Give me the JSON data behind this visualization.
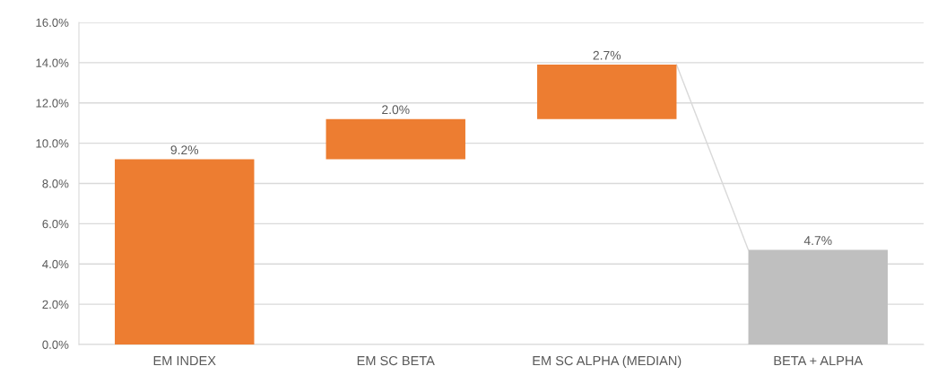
{
  "chart_data": {
    "type": "bar",
    "categories": [
      "EM INDEX",
      "EM SC BETA",
      "EM SC ALPHA (MEDIAN)",
      "BETA + ALPHA"
    ],
    "series": [
      {
        "values": [
          9.2,
          2.0,
          2.7,
          4.7
        ],
        "base": [
          0,
          9.2,
          11.2,
          0
        ],
        "colors": [
          "#ed7d31",
          "#ed7d31",
          "#ed7d31",
          "#bfbfbf"
        ],
        "value_labels": [
          "9.2%",
          "2.0%",
          "2.7%",
          "4.7%"
        ]
      }
    ],
    "ylim": [
      0,
      16
    ],
    "yticks": [
      {
        "value": 0,
        "label": "0.0%"
      },
      {
        "value": 2,
        "label": "2.0%"
      },
      {
        "value": 4,
        "label": "4.0%"
      },
      {
        "value": 6,
        "label": "6.0%"
      },
      {
        "value": 8,
        "label": "8.0%"
      },
      {
        "value": 10,
        "label": "10.0%"
      },
      {
        "value": 12,
        "label": "12.0%"
      },
      {
        "value": 14,
        "label": "14.0%"
      },
      {
        "value": 16,
        "label": "16.0%"
      }
    ],
    "grid": "y"
  }
}
